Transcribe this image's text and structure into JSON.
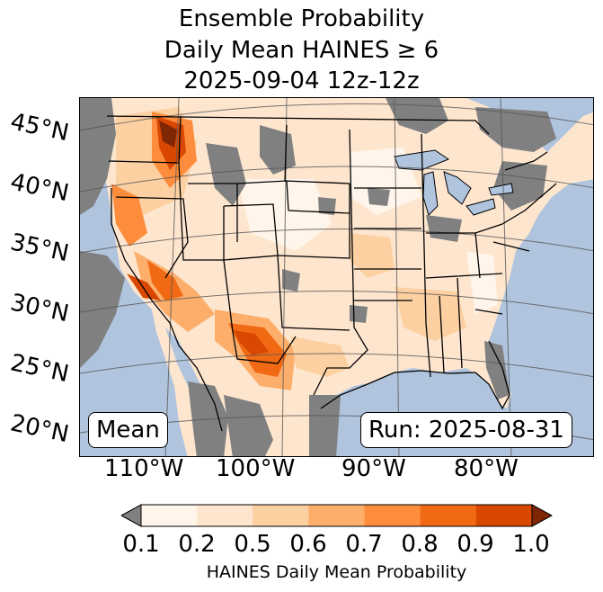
{
  "title": {
    "line1": "Ensemble Probability",
    "line2": "Daily Mean HAINES ≥ 6",
    "line3": "2025-09-04 12z-12z"
  },
  "labels": {
    "mean": "Mean",
    "run": "Run: 2025-08-31"
  },
  "lat_ticks": [
    "45°N",
    "40°N",
    "35°N",
    "30°N",
    "25°N",
    "20°N"
  ],
  "lon_ticks": [
    "110°W",
    "100°W",
    "90°W",
    "80°W"
  ],
  "colorbar": {
    "label": "HAINES Daily Mean Probability",
    "ticks": [
      "0.1",
      "0.2",
      "0.5",
      "0.6",
      "0.7",
      "0.8",
      "0.9",
      "1.0"
    ],
    "under_color": "#808080",
    "over_color": "#7f2704",
    "colors": [
      "#fff5eb",
      "#fee6ce",
      "#fdd0a2",
      "#fdae6b",
      "#fd8d3c",
      "#f16913",
      "#d94801"
    ]
  },
  "map_colors": {
    "ocean": "#b0c4de",
    "land_background": "#fee6ce",
    "below_threshold": "#808080",
    "lakes": "#b0c4de"
  }
}
